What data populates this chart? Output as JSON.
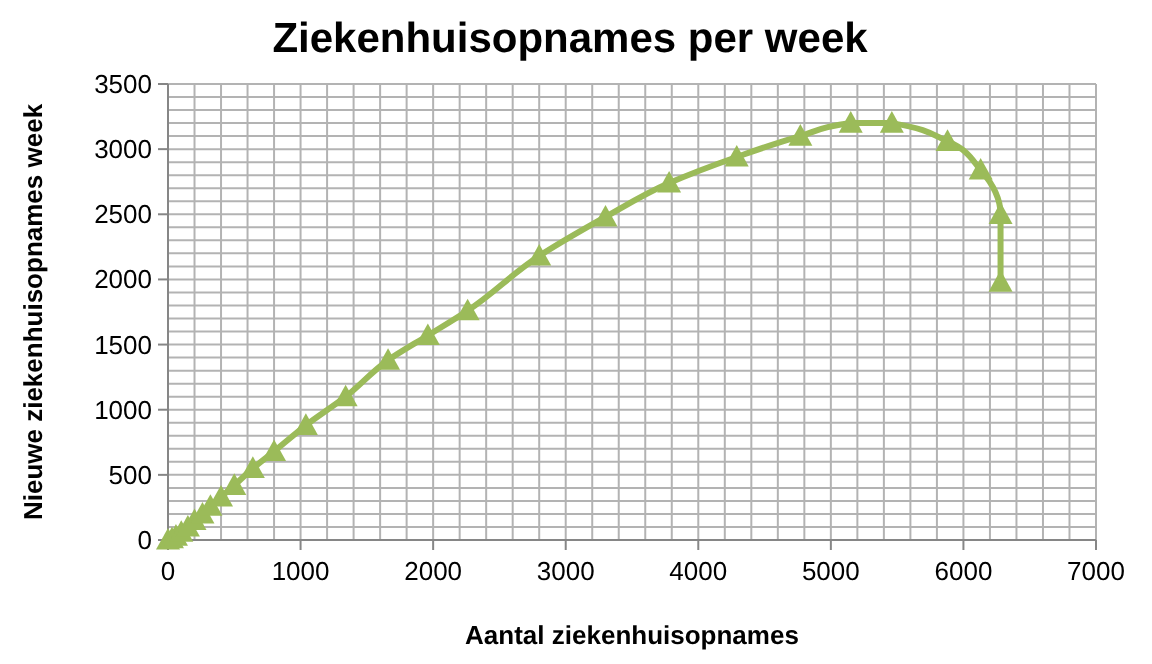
{
  "chart_data": {
    "type": "line",
    "title": "Ziekenhuisopnames per week",
    "xlabel": "Aantal ziekenhuisopnames",
    "ylabel": "Nieuwe ziekenhuisopnames week",
    "x": [
      0,
      30,
      60,
      100,
      150,
      200,
      260,
      320,
      400,
      500,
      640,
      800,
      1040,
      1340,
      1660,
      1960,
      2260,
      2800,
      3300,
      3780,
      4290,
      4770,
      5150,
      5460,
      5880,
      6130,
      6280,
      6280
    ],
    "series": [
      {
        "color": "#9bbb59",
        "values": [
          0,
          10,
          30,
          60,
          100,
          150,
          200,
          260,
          330,
          420,
          550,
          680,
          880,
          1100,
          1380,
          1570,
          1760,
          2180,
          2480,
          2740,
          2940,
          3100,
          3200,
          3200,
          3060,
          2840,
          2500,
          1980
        ]
      }
    ],
    "xlim": [
      0,
      7000
    ],
    "xticks": [
      0,
      1000,
      2000,
      3000,
      4000,
      5000,
      6000,
      7000
    ],
    "ylim": [
      0,
      3500
    ],
    "yticks": [
      0,
      500,
      1000,
      1500,
      2000,
      2500,
      3000,
      3500
    ],
    "grid": true,
    "marker": "triangle",
    "line_style": "solid"
  }
}
